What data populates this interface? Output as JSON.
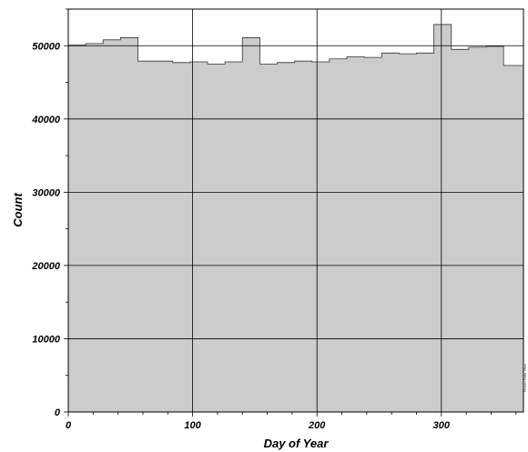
{
  "chart_data": {
    "type": "histogram",
    "xlabel": "Day of Year",
    "ylabel": "Count",
    "xlim": [
      0,
      366
    ],
    "ylim": [
      0,
      55000
    ],
    "x_ticks": [
      0,
      100,
      200,
      300
    ],
    "y_ticks": [
      0,
      10000,
      20000,
      30000,
      40000,
      50000
    ],
    "y_tick_labels": [
      "0",
      "10000",
      "20000",
      "30000",
      "40000",
      "50000"
    ],
    "x_tick_labels": [
      "0",
      "100",
      "200",
      "300"
    ],
    "grid": true,
    "fill_color": "#cccccc",
    "bin_width": 14,
    "bins": [
      {
        "start": 0,
        "end": 14,
        "value": 50100
      },
      {
        "start": 14,
        "end": 28,
        "value": 50300
      },
      {
        "start": 28,
        "end": 42,
        "value": 50800
      },
      {
        "start": 42,
        "end": 56,
        "value": 51100
      },
      {
        "start": 56,
        "end": 70,
        "value": 47900
      },
      {
        "start": 70,
        "end": 84,
        "value": 47900
      },
      {
        "start": 84,
        "end": 98,
        "value": 47700
      },
      {
        "start": 98,
        "end": 112,
        "value": 47800
      },
      {
        "start": 112,
        "end": 126,
        "value": 47500
      },
      {
        "start": 126,
        "end": 140,
        "value": 47800
      },
      {
        "start": 140,
        "end": 154,
        "value": 51100
      },
      {
        "start": 154,
        "end": 168,
        "value": 47500
      },
      {
        "start": 168,
        "end": 182,
        "value": 47700
      },
      {
        "start": 182,
        "end": 196,
        "value": 47900
      },
      {
        "start": 196,
        "end": 210,
        "value": 47800
      },
      {
        "start": 210,
        "end": 224,
        "value": 48200
      },
      {
        "start": 224,
        "end": 238,
        "value": 48500
      },
      {
        "start": 238,
        "end": 252,
        "value": 48400
      },
      {
        "start": 252,
        "end": 266,
        "value": 49000
      },
      {
        "start": 266,
        "end": 280,
        "value": 48900
      },
      {
        "start": 280,
        "end": 294,
        "value": 49000
      },
      {
        "start": 294,
        "end": 308,
        "value": 52900
      },
      {
        "start": 308,
        "end": 322,
        "value": 49500
      },
      {
        "start": 322,
        "end": 336,
        "value": 49800
      },
      {
        "start": 336,
        "end": 350,
        "value": 49900
      },
      {
        "start": 350,
        "end": 366,
        "value": 47300
      }
    ]
  },
  "watermark": "Ocean Data View"
}
